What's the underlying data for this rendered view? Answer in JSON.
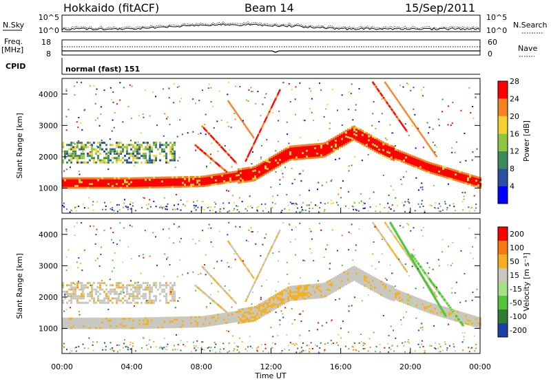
{
  "header": {
    "site": "Hokkaido (fitACF)",
    "beam": "Beam 14",
    "date": "15/Sep/2011"
  },
  "noise_panel": {
    "left_label": "N.Sky",
    "left_ticks": [
      "10^5",
      "10^0"
    ],
    "right_label": "N.Search",
    "right_ticks": [
      "10^5",
      "10^0"
    ]
  },
  "freq_panel": {
    "left_label_1": "Freq.",
    "left_label_2": "[MHz]",
    "left_ticks": [
      "18",
      "8"
    ],
    "right_label": "Nave",
    "right_ticks": [
      "60",
      "0"
    ]
  },
  "cpid_panel": {
    "label": "CPID",
    "mode": "normal (fast) 151"
  },
  "chart_data": [
    {
      "type": "heatmap",
      "name": "power",
      "ylabel": "Slant Range [km]",
      "ylim": [
        200,
        4500
      ],
      "y_ticks": [
        "1000",
        "2000",
        "3000",
        "4000"
      ],
      "colorbar_label": "Power [dB]",
      "colorbar_ticks": [
        "4",
        "8",
        "12",
        "16",
        "20",
        "24",
        "28"
      ],
      "colors": [
        "#0000ff",
        "#2c4fa3",
        "#3b8a5a",
        "#8ec63f",
        "#f5d233",
        "#f58220",
        "#ff0000"
      ],
      "main_echo_band": [
        {
          "hour": 0,
          "range": 1150
        },
        {
          "hour": 4,
          "range": 1150
        },
        {
          "hour": 8,
          "range": 1200
        },
        {
          "hour": 11,
          "range": 1450
        },
        {
          "hour": 13,
          "range": 2100
        },
        {
          "hour": 15,
          "range": 2200
        },
        {
          "hour": 16.7,
          "range": 2750
        },
        {
          "hour": 18.5,
          "range": 2200
        },
        {
          "hour": 21,
          "range": 1650
        },
        {
          "hour": 24,
          "range": 1150
        }
      ]
    },
    {
      "type": "heatmap",
      "name": "velocity",
      "ylabel": "Slant Range [km]",
      "xlabel": "Time UT",
      "ylim": [
        200,
        4500
      ],
      "y_ticks": [
        "1000",
        "2000",
        "3000",
        "4000"
      ],
      "x_ticks": [
        "00:00",
        "04:00",
        "08:00",
        "12:00",
        "16:00",
        "20:00",
        "00:00"
      ],
      "colorbar_label": "Velocity [m s⁻¹]",
      "colorbar_ticks": [
        "200",
        "100",
        "50",
        "15",
        "-15",
        "-50",
        "-100",
        "-200"
      ],
      "colors": [
        "#1f3fa8",
        "#2e7d32",
        "#55c43c",
        "#a8e08a",
        "#c8c8c0",
        "#f5b020",
        "#f57a10",
        "#ff0000"
      ]
    }
  ]
}
